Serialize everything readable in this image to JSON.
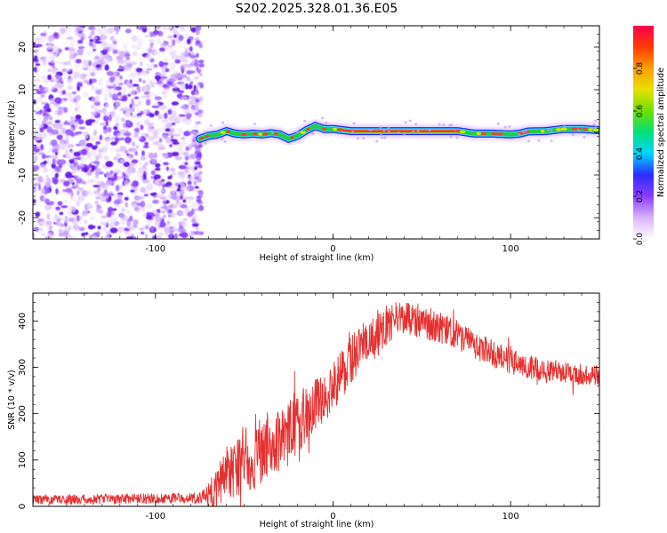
{
  "title": "S202.2025.328.01.36.E05",
  "colors": {
    "snr_line": "#e53030",
    "noise": "#8a4dff",
    "track_core": "#e0204a",
    "track_mid": "#22cc44",
    "track_edge": "#1a2bff",
    "track_glow": "#3fd8ff"
  },
  "chart_data": [
    {
      "type": "heatmap",
      "title": "S202.2025.328.01.36.E05",
      "xlabel": "Height of straight line (km)",
      "ylabel": "Frequency (Hz)",
      "xlim": [
        -169,
        150
      ],
      "ylim": [
        -25,
        25
      ],
      "xticks": [
        -100,
        0,
        100
      ],
      "xtick_labels": [
        "-100",
        "0",
        "100"
      ],
      "yticks": [
        -20,
        -10,
        0,
        10,
        20
      ],
      "ytick_labels": [
        "-20",
        "-10",
        "0",
        "10",
        "20"
      ],
      "noise_region_x": [
        -169,
        -75
      ],
      "ridge": {
        "x": [
          -75,
          -70,
          -65,
          -60,
          -55,
          -50,
          -45,
          -40,
          -35,
          -30,
          -25,
          -20,
          -15,
          -10,
          -5,
          0,
          10,
          20,
          40,
          60,
          70,
          80,
          90,
          100,
          105,
          110,
          120,
          130,
          140,
          150
        ],
        "freq": [
          -1.5,
          -0.8,
          -0.5,
          0.3,
          -0.3,
          -0.5,
          -0.3,
          -0.5,
          -0.2,
          -0.5,
          -1.5,
          -0.8,
          0.5,
          1.5,
          0.8,
          0.8,
          0.3,
          0.3,
          0.3,
          0.3,
          0.3,
          -0.3,
          -0.3,
          -0.5,
          -0.3,
          0.2,
          0.3,
          0.8,
          0.8,
          0.5
        ]
      },
      "colorbar": {
        "label": "Normalized spectral amplitude",
        "range": [
          0.0,
          1.0
        ],
        "ticks": [
          0.0,
          0.2,
          0.4,
          0.6,
          0.8
        ],
        "tick_labels": [
          "0.0",
          "0.2",
          "0.4",
          "0.6",
          "0.8"
        ],
        "colormap": [
          "#ffffff",
          "#d9b3ff",
          "#8a3dff",
          "#2d2bff",
          "#00d4ff",
          "#00e07a",
          "#6ee000",
          "#e8e000",
          "#ff9f00",
          "#ff3a00",
          "#ff0050"
        ]
      }
    },
    {
      "type": "line",
      "xlabel": "Height of straight line (km)",
      "ylabel": "SNR (10 * v/v)",
      "xlim": [
        -169,
        150
      ],
      "ylim": [
        0,
        460
      ],
      "xticks": [
        -100,
        0,
        100
      ],
      "xtick_labels": [
        "-100",
        "0",
        "100"
      ],
      "yticks": [
        0,
        100,
        200,
        300,
        400
      ],
      "ytick_labels": [
        "0",
        "100",
        "200",
        "300",
        "400"
      ],
      "trend": {
        "x": [
          -169,
          -75,
          -68,
          -60,
          -50,
          -40,
          -30,
          -20,
          -10,
          0,
          10,
          20,
          30,
          40,
          50,
          60,
          70,
          80,
          90,
          100,
          110,
          120,
          130,
          140,
          150
        ],
        "y": [
          14,
          18,
          30,
          75,
          90,
          112,
          140,
          175,
          215,
          258,
          315,
          368,
          390,
          405,
          400,
          385,
          368,
          348,
          330,
          312,
          300,
          292,
          288,
          285,
          283
        ]
      },
      "noise_amplitude": {
        "x": [
          -169,
          -75,
          -68,
          -60,
          -40,
          -20,
          0,
          30,
          60,
          100,
          150
        ],
        "amp": [
          10,
          12,
          40,
          60,
          70,
          70,
          55,
          45,
          35,
          28,
          22
        ]
      }
    }
  ]
}
